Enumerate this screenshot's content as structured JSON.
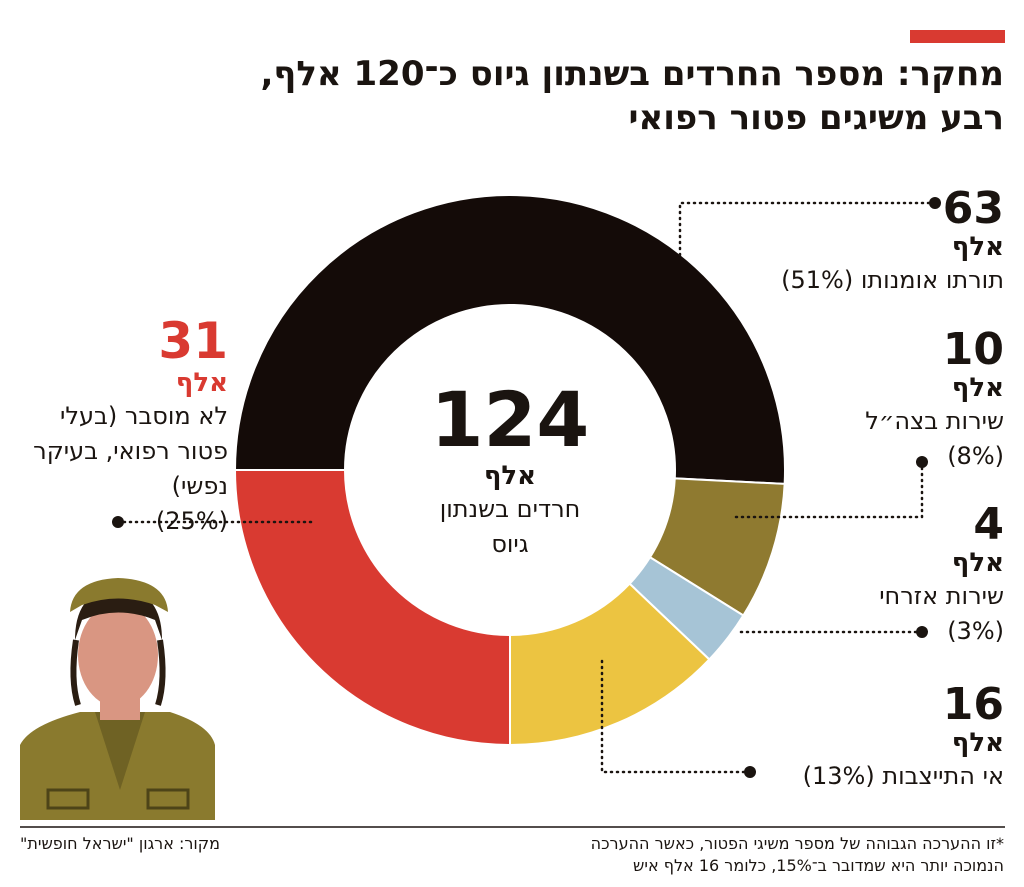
{
  "chart_data": {
    "type": "donut",
    "title": [
      "מחקר: מספר החרדים בשנתון גיוס כ־120 אלף,",
      "רבע משיגים פטור רפואי"
    ],
    "total": 124,
    "unit": "אלף",
    "center_text": [
      "חרדים בשנתון",
      "גיוס"
    ],
    "categories": [
      "תורתו אומנותו",
      "שירות בצה״ל",
      "שירות אזרחי",
      "אי התייצבות",
      "לא מוסבר (בעלי פטור רפואי, בעיקר נפשי)"
    ],
    "values": [
      63,
      10,
      4,
      16,
      31
    ],
    "percent_labels": [
      "(51%)",
      "(8%)",
      "(3%)",
      "(13%)",
      "(25%)"
    ],
    "colors": [
      "#140b08",
      "#8f7a30",
      "#a6c4d6",
      "#ecc441",
      "#d93a31"
    ],
    "footnote": [
      "*זו ההערכה הגבוהה של מספר משיגי הפטור, כאשר ההערכה",
      "הנמוכה יותר היא שמדובר ב־15%, כלומר 16 אלף איש"
    ],
    "source": "מקור: ארגון \"ישראל חופשית\""
  }
}
